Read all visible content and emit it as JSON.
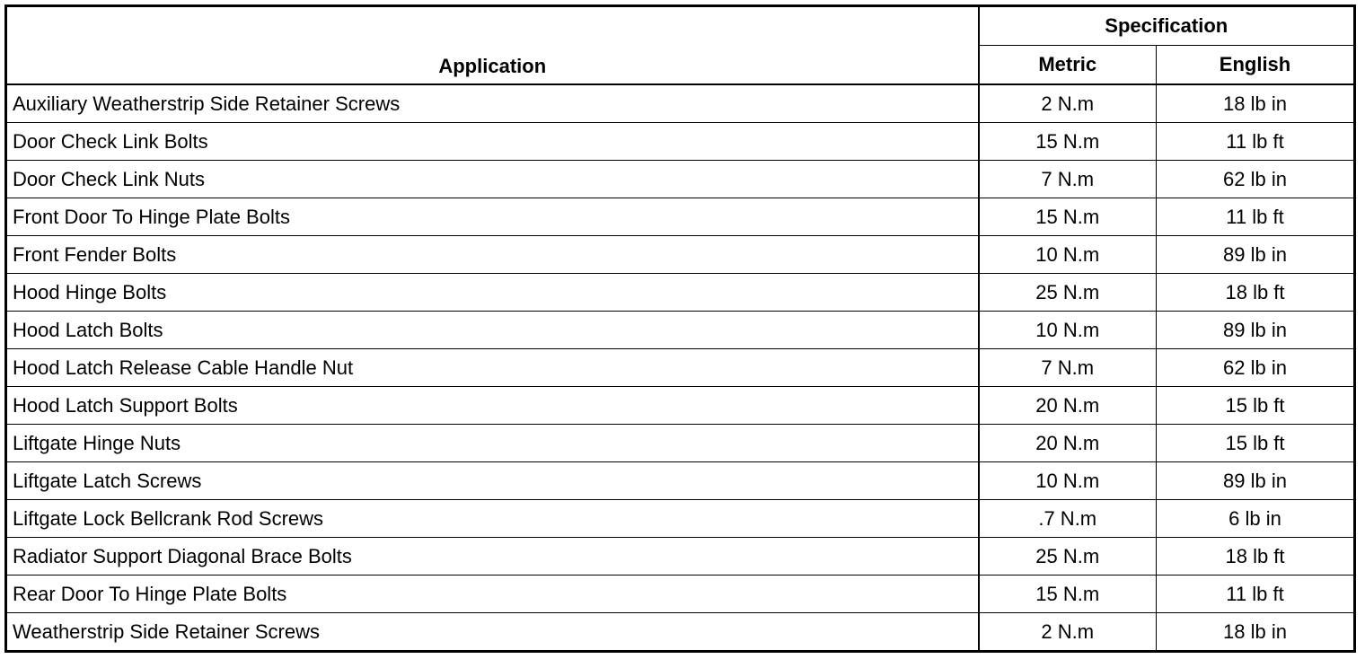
{
  "header": {
    "application": "Application",
    "specification": "Specification",
    "metric": "Metric",
    "english": "English"
  },
  "rows": [
    {
      "application": "Auxiliary Weatherstrip Side Retainer Screws",
      "metric": "2 N.m",
      "english": "18 lb in"
    },
    {
      "application": "Door Check Link Bolts",
      "metric": "15 N.m",
      "english": "11 lb ft"
    },
    {
      "application": "Door Check Link Nuts",
      "metric": "7 N.m",
      "english": "62 lb in"
    },
    {
      "application": "Front Door To Hinge Plate Bolts",
      "metric": "15 N.m",
      "english": "11 lb ft"
    },
    {
      "application": "Front Fender Bolts",
      "metric": "10 N.m",
      "english": "89 lb in"
    },
    {
      "application": "Hood Hinge Bolts",
      "metric": "25 N.m",
      "english": "18 lb ft"
    },
    {
      "application": "Hood Latch Bolts",
      "metric": "10 N.m",
      "english": "89 lb in"
    },
    {
      "application": "Hood Latch Release Cable Handle Nut",
      "metric": "7 N.m",
      "english": "62 lb in"
    },
    {
      "application": "Hood Latch Support Bolts",
      "metric": "20 N.m",
      "english": "15 lb ft"
    },
    {
      "application": "Liftgate Hinge Nuts",
      "metric": "20 N.m",
      "english": "15 lb ft"
    },
    {
      "application": "Liftgate Latch Screws",
      "metric": "10 N.m",
      "english": "89 lb in"
    },
    {
      "application": "Liftgate Lock Bellcrank Rod Screws",
      "metric": ".7 N.m",
      "english": "6 lb in"
    },
    {
      "application": "Radiator Support Diagonal Brace Bolts",
      "metric": "25 N.m",
      "english": "18 lb ft"
    },
    {
      "application": "Rear Door To Hinge Plate Bolts",
      "metric": "15 N.m",
      "english": "11 lb ft"
    },
    {
      "application": "Weatherstrip Side Retainer Screws",
      "metric": "2 N.m",
      "english": "18 lb in"
    }
  ]
}
